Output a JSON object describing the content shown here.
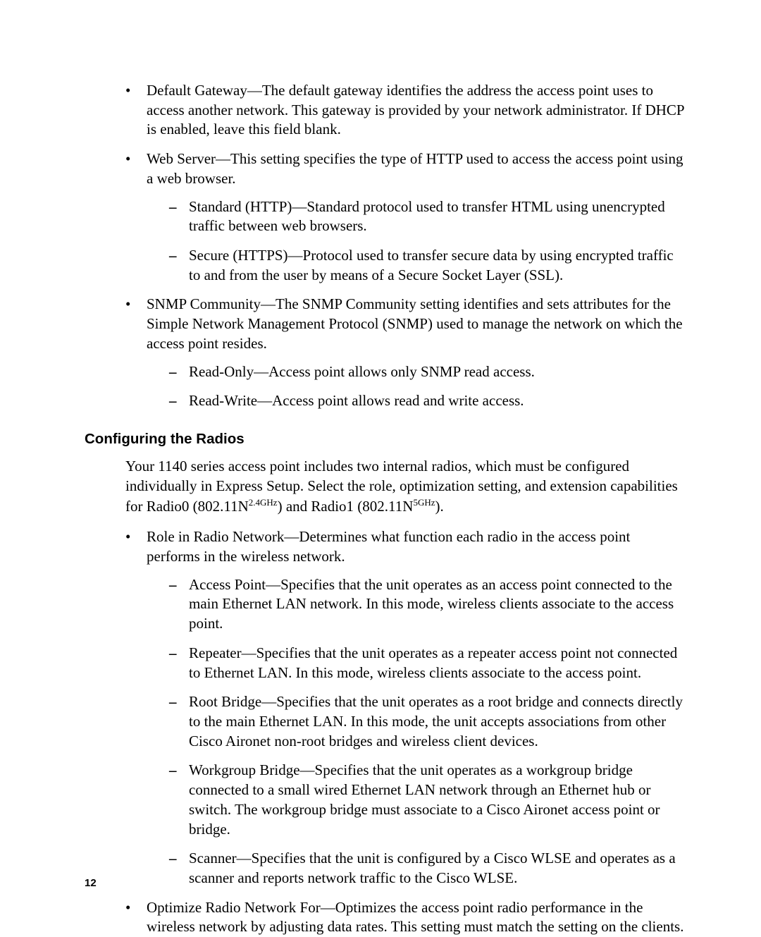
{
  "page": {
    "background": "#ffffff",
    "text_color": "#000000",
    "body_font": "Times New Roman",
    "heading_font": "Arial",
    "body_fontsize": 21,
    "heading_fontsize": 20.5,
    "pagenum_fontsize": 15,
    "page_number": "12"
  },
  "list1": {
    "item1": "Default Gateway—The default gateway identifies the address the access point uses to access another network. This gateway is provided by your network administrator. If DHCP is enabled, leave this field blank.",
    "item2": "Web Server—This setting specifies the type of HTTP used to access the access point using a web browser.",
    "item2_sub1": "Standard (HTTP)—Standard protocol used to transfer HTML using unencrypted traffic between web browsers.",
    "item2_sub2": "Secure (HTTPS)—Protocol used to transfer secure data by using encrypted traffic to and from the user by means of a Secure Socket Layer (SSL).",
    "item3": "SNMP Community—The SNMP Community setting identifies and sets attributes for the Simple Network Management Protocol (SNMP) used to manage the network on which the access point resides.",
    "item3_sub1": "Read-Only—Access point allows only SNMP read access.",
    "item3_sub2": "Read-Write—Access point allows read and write access."
  },
  "heading": "Configuring the Radios",
  "intro_a": "Your 1140 series access point includes two internal radios, which must be configured individually in Express Setup. Select the role, optimization setting, and extension capabilities for Radio0 (802.11N",
  "intro_sup1": "2.4GHz",
  "intro_b": ") and Radio1 (802.11N",
  "intro_sup2": "5GHz",
  "intro_c": ").",
  "list2": {
    "item1": "Role in Radio Network—Determines what function each radio in the access point performs in the wireless network.",
    "item1_sub1": "Access Point—Specifies that the unit operates as an access point connected to the main Ethernet LAN network. In this mode, wireless clients associate to the access point.",
    "item1_sub2": "Repeater—Specifies that the unit operates as a repeater access point not connected to Ethernet LAN. In this mode, wireless clients associate to the access point.",
    "item1_sub3": "Root Bridge—Specifies that the unit operates as a root bridge and connects directly to the main Ethernet LAN. In this mode, the unit accepts associations from other Cisco Aironet non-root bridges and wireless client devices.",
    "item1_sub4": "Workgroup Bridge—Specifies that the unit operates as a workgroup bridge connected to a small wired Ethernet LAN network through an Ethernet hub or switch. The workgroup bridge must associate to a Cisco Aironet access point or bridge.",
    "item1_sub5": "Scanner—Specifies that the unit is configured by a Cisco WLSE and operates as a scanner and reports network traffic to the Cisco WLSE.",
    "item2": "Optimize Radio Network For—Optimizes the access point radio performance in the wireless network by adjusting data rates. This setting must match the setting on the clients."
  }
}
